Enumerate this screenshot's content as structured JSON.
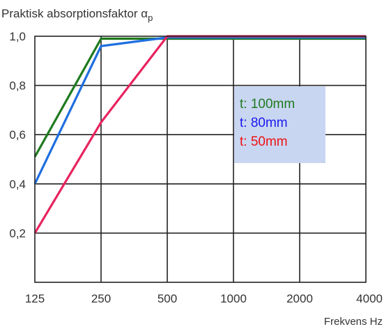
{
  "chart_data": {
    "type": "line",
    "title": "Praktisk absorptionsfaktor α",
    "title_subscript": "p",
    "xlabel": "Frekvens Hz",
    "ylabel": "",
    "categories": [
      "125",
      "250",
      "500",
      "1000",
      "2000",
      "4000"
    ],
    "y_ticks": [
      "0,2",
      "0,4",
      "0,6",
      "0,8",
      "1,0"
    ],
    "y_tick_values": [
      0.2,
      0.4,
      0.6,
      0.8,
      1.0
    ],
    "ylim": [
      0.0,
      1.0
    ],
    "grid": true,
    "legend_placement": "middle-right",
    "legend_background": "#c9d6f2",
    "series": [
      {
        "name": "t: 100mm",
        "color": "#1e7a1e",
        "values": [
          0.51,
          0.99,
          0.99,
          0.99,
          0.99,
          0.99
        ]
      },
      {
        "name": "t: 80mm",
        "color": "#1f6fe0",
        "values": [
          0.4,
          0.96,
          0.995,
          0.995,
          0.995,
          0.995
        ]
      },
      {
        "name": "t: 50mm",
        "color": "#e8235e",
        "values": [
          0.2,
          0.65,
          1.0,
          1.0,
          1.0,
          1.0
        ]
      }
    ],
    "legend_colors": [
      "#1e7a1e",
      "#1a1aee",
      "#ee1111"
    ]
  }
}
